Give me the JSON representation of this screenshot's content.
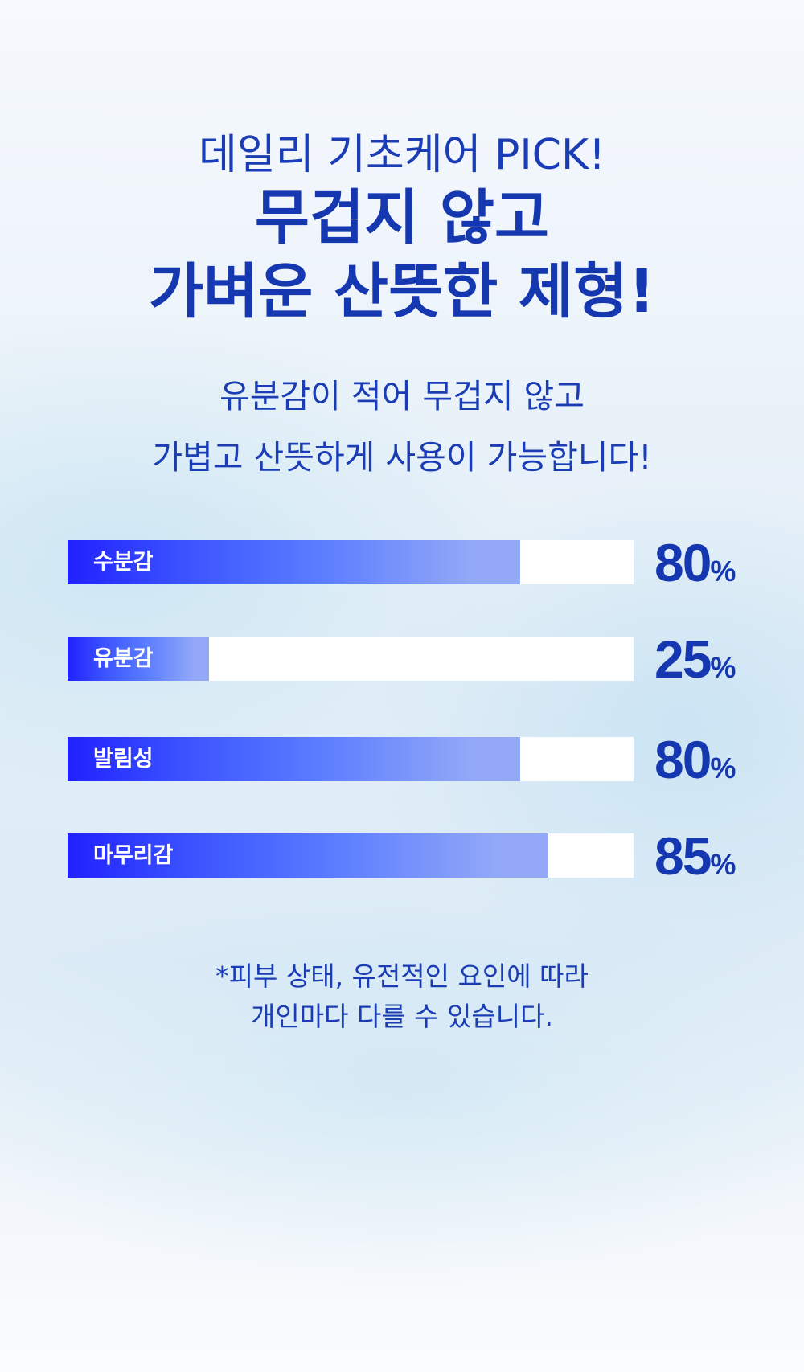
{
  "header": {
    "eyebrow": "데일리 기초케어 PICK!",
    "headline_1": "무겁지 않고",
    "headline_2": "가벼운 산뜻한 제형!"
  },
  "description": {
    "line_1": "유분감이 적어 무겁지 않고",
    "line_2": "가볍고 산뜻하게 사용이 가능합니다!"
  },
  "chart_data": {
    "type": "bar",
    "orientation": "horizontal",
    "categories": [
      "수분감",
      "유분감",
      "발림성",
      "마무리감"
    ],
    "values": [
      80,
      25,
      80,
      85
    ],
    "unit": "%",
    "xlim": [
      0,
      100
    ],
    "value_labels": [
      "80",
      "25",
      "80",
      "85"
    ],
    "colors": {
      "fill_start": "#2121ff",
      "fill_end": "#93a9f7",
      "track": "#ffffff",
      "value_text": "#1537b0"
    }
  },
  "footnote": {
    "line_1": "*피부 상태, 유전적인 요인에 따라",
    "line_2": "개인마다 다를 수 있습니다."
  }
}
